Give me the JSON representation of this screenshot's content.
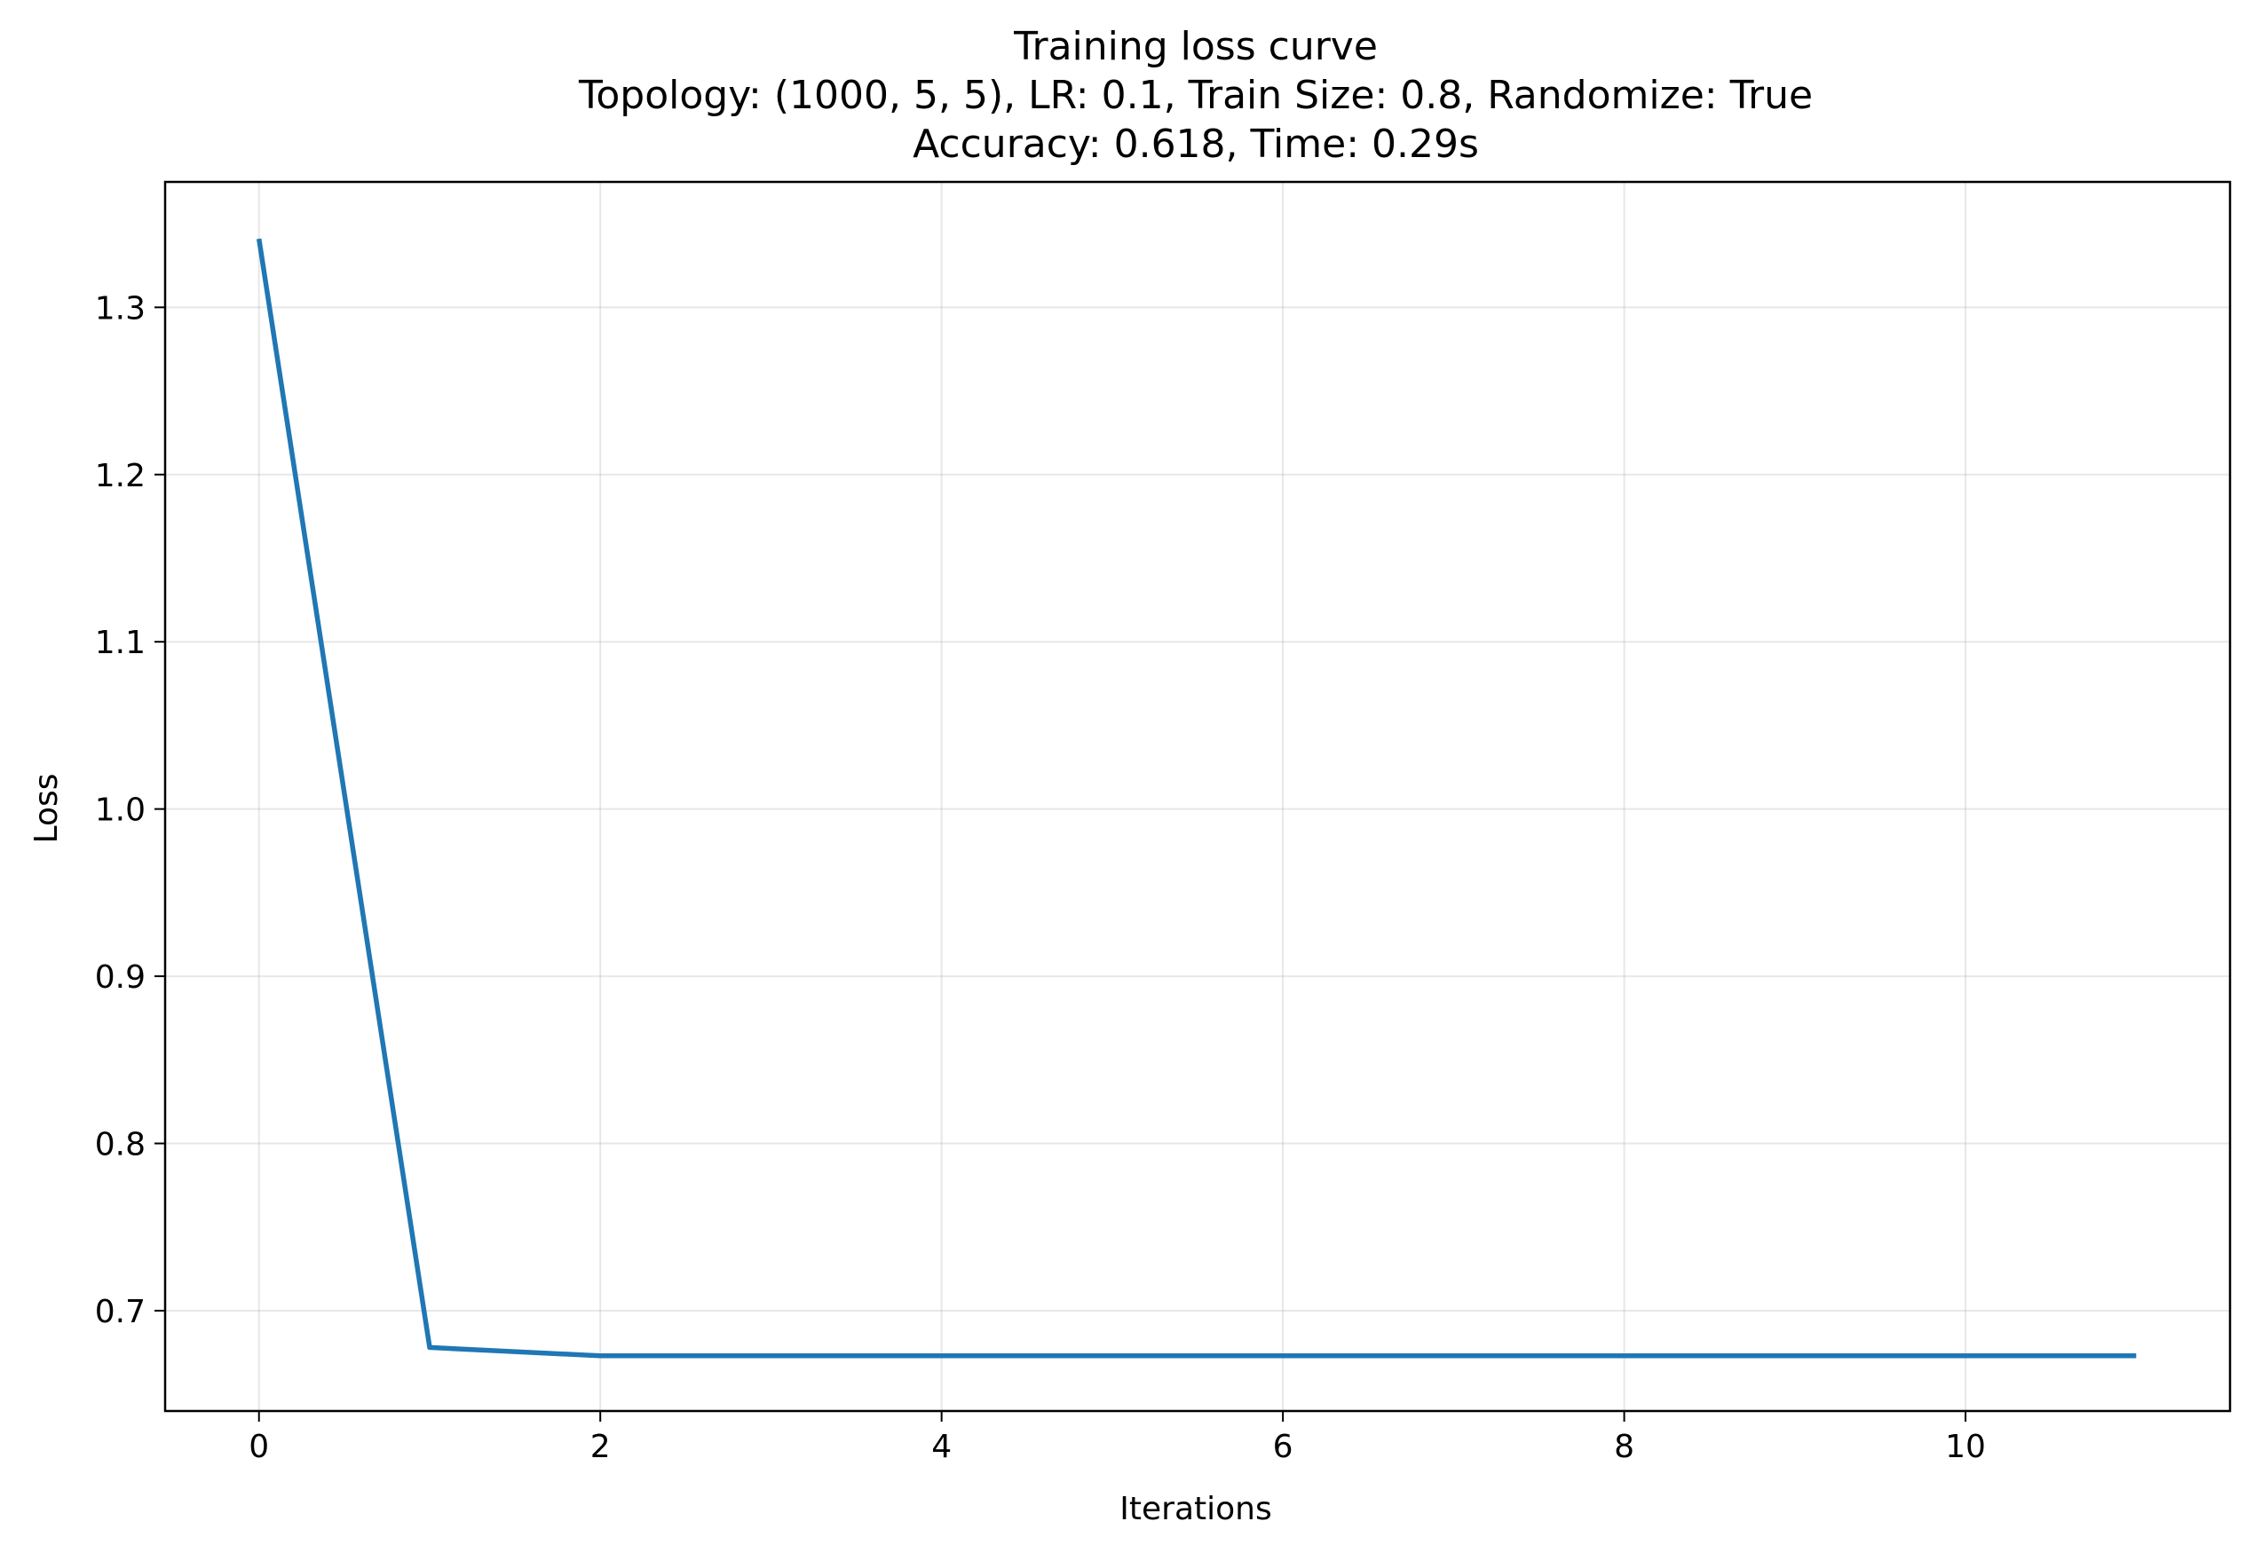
{
  "chart_data": {
    "type": "line",
    "title_lines": [
      "Training loss curve",
      "Topology: (1000, 5, 5), LR: 0.1, Train Size: 0.8, Randomize: True",
      "Accuracy: 0.618, Time: 0.29s"
    ],
    "xlabel": "Iterations",
    "ylabel": "Loss",
    "xlim": [
      -0.55,
      11.55
    ],
    "ylim": [
      0.64,
      1.375
    ],
    "xticks": [
      0,
      2,
      4,
      6,
      8,
      10
    ],
    "yticks": [
      0.7,
      0.8,
      0.9,
      1.0,
      1.1,
      1.2,
      1.3
    ],
    "grid": true,
    "series": [
      {
        "color": "#1f77b4",
        "x": [
          0,
          1,
          2,
          3,
          4,
          5,
          6,
          7,
          8,
          9,
          10,
          11
        ],
        "y": [
          1.341,
          0.678,
          0.673,
          0.673,
          0.673,
          0.673,
          0.673,
          0.673,
          0.673,
          0.673,
          0.673,
          0.673
        ]
      }
    ]
  }
}
